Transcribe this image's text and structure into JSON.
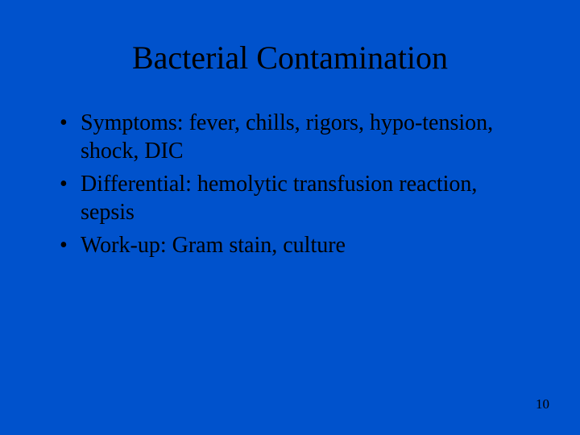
{
  "slide": {
    "background_color": "#0052cc",
    "text_color": "#000000",
    "title": {
      "text": "Bacterial Contamination",
      "fontsize": 40
    },
    "bullets": {
      "fontsize": 28,
      "line_height": 1.25,
      "items": [
        "Symptoms: fever, chills, rigors, hypo-tension, shock, DIC",
        "Differential: hemolytic transfusion reaction, sepsis",
        "Work-up: Gram stain, culture"
      ]
    },
    "page_number": {
      "value": "10",
      "fontsize": 17
    }
  }
}
